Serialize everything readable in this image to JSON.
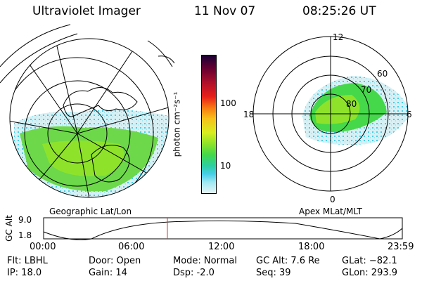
{
  "header": {
    "title": "Ultraviolet Imager",
    "date": "11 Nov 07",
    "time": "08:25:26 UT"
  },
  "colorbar": {
    "unit_label": "photon cm⁻²s⁻¹",
    "ticks": [
      "100",
      "10"
    ],
    "colors": [
      "#1a0033",
      "#6b0030",
      "#b0102a",
      "#e8201a",
      "#f87a12",
      "#f7c21a",
      "#d8ee20",
      "#8ee32a",
      "#44d84a",
      "#2ccfa0",
      "#46cde8",
      "#9fe8f2",
      "#e6f4f6"
    ]
  },
  "left_map": {
    "caption": "Geographic Lat/Lon"
  },
  "right_map": {
    "caption": "Apex MLat/MLT",
    "mlt_labels": [
      "12",
      "18",
      "6",
      "0"
    ],
    "lat_labels": [
      "60",
      "70",
      "80"
    ]
  },
  "altitude_plot": {
    "ylabel": "GC Alt",
    "yticks": [
      "9.0",
      "1.8"
    ],
    "xticks": [
      "00:00",
      "06:00",
      "12:00",
      "18:00",
      "23:59"
    ],
    "marker_color": "#e03030"
  },
  "info": {
    "flt": "Flt: LBHL",
    "ip": "IP: 18.0",
    "door": "Door: Open",
    "gain": "Gain: 14",
    "mode": "Mode: Normal",
    "dsp": "Dsp:    -2.0",
    "gcalt": "GC Alt: 7.6 Re",
    "seq": "Seq: 39",
    "glat": "GLat: −82.1",
    "glon": "GLon: 293.9"
  }
}
